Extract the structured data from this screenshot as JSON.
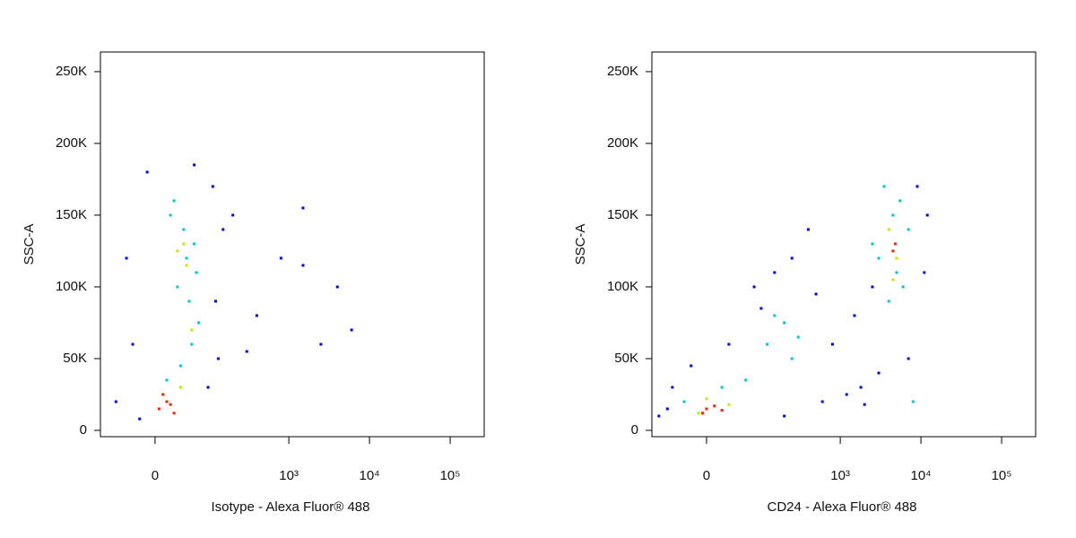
{
  "chart_data": [
    {
      "type": "scatter",
      "x_label": "Isotype - Alexa Fluor® 488",
      "y_label": "SSC-A",
      "xscale": "biexponential",
      "xlim": [
        -100,
        264000
      ],
      "ylim": [
        -4400,
        263700
      ],
      "xticks": [
        0,
        {
          "value": 1000,
          "label": "10³"
        },
        {
          "value": 10000,
          "label": "10⁴"
        },
        {
          "value": 100000,
          "label": "10⁵"
        }
      ],
      "yticks": [
        0,
        {
          "value": 50000,
          "label": "50K"
        },
        {
          "value": 100000,
          "label": "100K"
        },
        {
          "value": 150000,
          "label": "150K"
        },
        {
          "value": 200000,
          "label": "200K"
        },
        {
          "value": 250000,
          "label": "250K"
        }
      ],
      "series": [
        {
          "color": "#0000ff",
          "x": [
            -40,
            -10,
            110,
            150,
            -30,
            95,
            120,
            200,
            400,
            800,
            1500,
            1500,
            4000,
            6000,
            -60,
            130,
            60,
            -20,
            300,
            2500
          ],
          "y": [
            120000,
            180000,
            170000,
            140000,
            60000,
            30000,
            90000,
            150000,
            80000,
            120000,
            155000,
            115000,
            100000,
            70000,
            20000,
            50000,
            185000,
            8000,
            55000,
            60000
          ]
        },
        {
          "color": "#00c8c8",
          "x": [
            20,
            40,
            60,
            30,
            50,
            70,
            25,
            55,
            45,
            35,
            65,
            15
          ],
          "y": [
            150000,
            140000,
            130000,
            100000,
            90000,
            75000,
            160000,
            60000,
            120000,
            45000,
            110000,
            35000
          ]
        },
        {
          "color": "#c8e600",
          "x": [
            30,
            45,
            40,
            55,
            35
          ],
          "y": [
            125000,
            115000,
            130000,
            70000,
            30000
          ]
        },
        {
          "color": "#ff2000",
          "x": [
            5,
            15,
            25,
            10,
            20
          ],
          "y": [
            15000,
            20000,
            12000,
            25000,
            18000
          ]
        }
      ]
    },
    {
      "type": "scatter",
      "x_label": "CD24 - Alexa Fluor® 488",
      "y_label": "SSC-A",
      "xscale": "biexponential",
      "xlim": [
        -100,
        264000
      ],
      "ylim": [
        -4400,
        263700
      ],
      "xticks": [
        0,
        {
          "value": 1000,
          "label": "10³"
        },
        {
          "value": 10000,
          "label": "10⁴"
        },
        {
          "value": 100000,
          "label": "10⁵"
        }
      ],
      "yticks": [
        0,
        {
          "value": 50000,
          "label": "50K"
        },
        {
          "value": 100000,
          "label": "100K"
        },
        {
          "value": 150000,
          "label": "150K"
        },
        {
          "value": 200000,
          "label": "200K"
        },
        {
          "value": 250000,
          "label": "250K"
        }
      ],
      "series": [
        {
          "color": "#0000ff",
          "x": [
            -80,
            -50,
            -20,
            30,
            100,
            150,
            250,
            500,
            800,
            1200,
            2000,
            1500,
            3000,
            12000,
            9000,
            2500,
            1800,
            600,
            200,
            -60,
            80,
            400,
            7000,
            11000
          ],
          "y": [
            10000,
            30000,
            45000,
            60000,
            85000,
            110000,
            120000,
            95000,
            60000,
            25000,
            18000,
            80000,
            40000,
            150000,
            170000,
            100000,
            30000,
            20000,
            10000,
            15000,
            100000,
            140000,
            50000,
            110000
          ]
        },
        {
          "color": "#00c8c8",
          "x": [
            -30,
            20,
            60,
            120,
            200,
            300,
            150,
            250,
            3500,
            5500,
            4000,
            6000,
            4500,
            3000,
            7000,
            5000,
            2500,
            8000
          ],
          "y": [
            20000,
            30000,
            35000,
            60000,
            75000,
            65000,
            80000,
            50000,
            170000,
            160000,
            90000,
            100000,
            150000,
            120000,
            140000,
            110000,
            130000,
            20000
          ]
        },
        {
          "color": "#c8e600",
          "x": [
            0,
            30,
            -10,
            4000,
            5000,
            4500
          ],
          "y": [
            22000,
            18000,
            12000,
            140000,
            120000,
            105000
          ]
        },
        {
          "color": "#ff2000",
          "x": [
            0,
            10,
            -5,
            20,
            4500,
            4800
          ],
          "y": [
            15000,
            17000,
            12000,
            14000,
            125000,
            130000
          ]
        }
      ]
    }
  ]
}
